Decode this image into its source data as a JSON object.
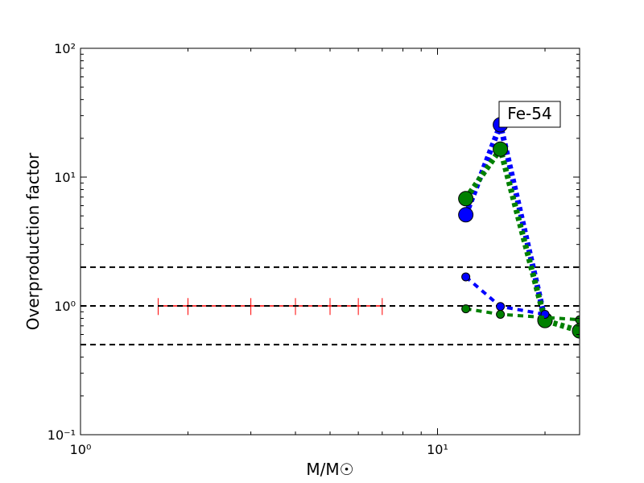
{
  "chart_data": {
    "type": "line",
    "xlabel": "M/M☉",
    "ylabel": "Overproduction factor",
    "annotation": "Fe-54",
    "xscale": "log",
    "yscale": "log",
    "xlim": [
      1,
      25
    ],
    "ylim": [
      0.1,
      100
    ],
    "xticks": [
      {
        "value": 1,
        "label": "10⁰"
      },
      {
        "value": 10,
        "label": "10¹"
      }
    ],
    "yticks": [
      {
        "value": 0.1,
        "label": "10⁻¹"
      },
      {
        "value": 1,
        "label": "10⁰"
      },
      {
        "value": 10,
        "label": "10¹"
      },
      {
        "value": 100,
        "label": "10²"
      }
    ],
    "xminorticks": [
      2,
      3,
      4,
      5,
      6,
      7,
      8,
      9,
      20
    ],
    "yminorticks": [
      0.2,
      0.3,
      0.4,
      0.5,
      0.6,
      0.7,
      0.8,
      0.9,
      2,
      3,
      4,
      5,
      6,
      7,
      8,
      9,
      20,
      30,
      40,
      50,
      60,
      70,
      80,
      90
    ],
    "hlines": {
      "color": "#000000",
      "values": [
        2,
        1,
        0.5
      ]
    },
    "reference": {
      "color": "#ff0000",
      "x": [
        1.65,
        2,
        3,
        4,
        5,
        6,
        7
      ],
      "values": [
        1,
        1,
        1,
        1,
        1,
        1,
        1
      ],
      "errors": [
        0.15,
        0.15,
        0.15,
        0.15,
        0.15,
        0.15,
        0.15
      ]
    },
    "series": [
      {
        "color": "#0000ff",
        "style": "dotted",
        "x": [
          12,
          15,
          20
        ],
        "values": [
          5.1,
          25.5,
          0.78
        ]
      },
      {
        "color": "#008000",
        "style": "dotted",
        "x": [
          12,
          15,
          20,
          25
        ],
        "values": [
          6.8,
          16.5,
          0.77,
          0.64
        ]
      },
      {
        "color": "#0000ff",
        "style": "dashed",
        "x": [
          12,
          15,
          20
        ],
        "values": [
          1.68,
          0.99,
          0.86
        ]
      },
      {
        "color": "#008000",
        "style": "dashed",
        "x": [
          12,
          15,
          25
        ],
        "values": [
          0.95,
          0.86,
          0.78
        ]
      }
    ]
  }
}
